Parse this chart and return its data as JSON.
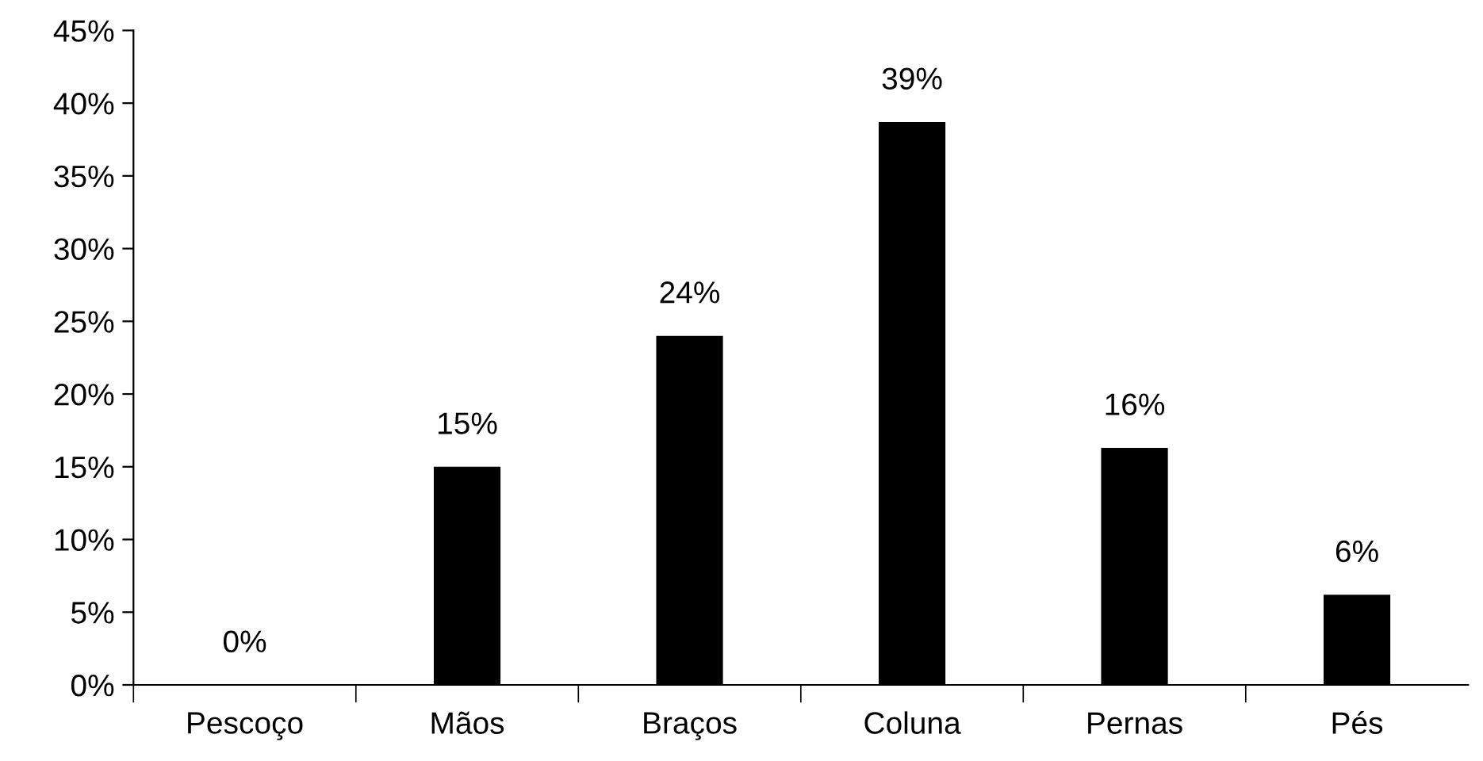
{
  "chart_data": {
    "type": "bar",
    "categories": [
      "Pescoço",
      "Mãos",
      "Braços",
      "Coluna",
      "Pernas",
      "Pés"
    ],
    "values": [
      0,
      15,
      24,
      38.7,
      16.3,
      6.2
    ],
    "value_labels": [
      "0%",
      "15%",
      "24%",
      "39%",
      "16%",
      "6%"
    ],
    "color": "#000000",
    "ylim": [
      0,
      45
    ],
    "yticks": [
      {
        "value": 0,
        "label": "0%"
      },
      {
        "value": 5,
        "label": "5%"
      },
      {
        "value": 10,
        "label": "10%"
      },
      {
        "value": 15,
        "label": "15%"
      },
      {
        "value": 20,
        "label": "20%"
      },
      {
        "value": 25,
        "label": "25%"
      },
      {
        "value": 30,
        "label": "30%"
      },
      {
        "value": 35,
        "label": "35%"
      },
      {
        "value": 40,
        "label": "40%"
      },
      {
        "value": 45,
        "label": "45%"
      }
    ],
    "grid": false
  }
}
